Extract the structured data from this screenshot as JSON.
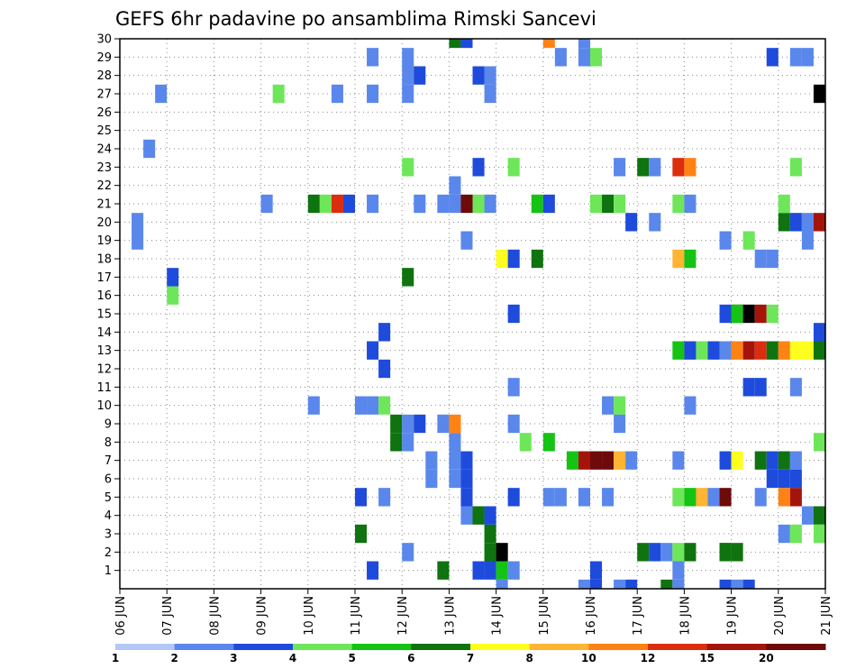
{
  "chart_data": {
    "type": "heatmap",
    "title": "GEFS 6hr padavine po ansamblima Rimski Sancevi",
    "xlabel": "",
    "ylabel": "",
    "x_ticks": [
      "06 JUN",
      "07 JUN",
      "08 JUN",
      "09 JUN",
      "10 JUN",
      "11 JUN",
      "12 JUN",
      "13 JUN",
      "14 JUN",
      "15 JUN",
      "16 JUN",
      "17 JUN",
      "18 JUN",
      "19 JUN",
      "20 JUN",
      "21 JUN"
    ],
    "y_ticks": [
      "1",
      "2",
      "3",
      "4",
      "5",
      "6",
      "7",
      "8",
      "9",
      "10",
      "11",
      "12",
      "13",
      "14",
      "15",
      "16",
      "17",
      "18",
      "19",
      "20",
      "21",
      "22",
      "23",
      "24",
      "25",
      "26",
      "27",
      "28",
      "29",
      "30"
    ],
    "xlim": [
      0,
      15
    ],
    "ylim": [
      0,
      30
    ],
    "time_step_days": 0.25,
    "grid": true,
    "grid_style": "dotted",
    "legend": {
      "placement": "bottom",
      "thresholds": [
        1,
        2,
        3,
        4,
        5,
        6,
        7,
        8,
        10,
        12,
        15,
        20
      ],
      "colors": [
        "#b4c8f5",
        "#5a87eb",
        "#1e4bdc",
        "#6ee65a",
        "#14c314",
        "#0f730f",
        "#ffff1e",
        "#ffb432",
        "#ff8214",
        "#dc2d0f",
        "#a5140a",
        "#6e0a0a"
      ]
    },
    "cells": [
      [
        0.25,
        19,
        1
      ],
      [
        0.25,
        20,
        1
      ],
      [
        0.5,
        24,
        1
      ],
      [
        0.75,
        27,
        1
      ],
      [
        1.0,
        17,
        2
      ],
      [
        1.0,
        16,
        3
      ],
      [
        2.5,
        31,
        2
      ],
      [
        3.0,
        21,
        1
      ],
      [
        3.25,
        27,
        3
      ],
      [
        4.0,
        21,
        5
      ],
      [
        4.0,
        10,
        1
      ],
      [
        4.25,
        21,
        3
      ],
      [
        4.5,
        21,
        9
      ],
      [
        4.5,
        27,
        1
      ],
      [
        4.75,
        21,
        2
      ],
      [
        5.0,
        3,
        5
      ],
      [
        5.0,
        5,
        2
      ],
      [
        5.0,
        10,
        1
      ],
      [
        5.25,
        1,
        2
      ],
      [
        5.25,
        10,
        1
      ],
      [
        5.25,
        13,
        2
      ],
      [
        5.25,
        29,
        1
      ],
      [
        5.25,
        21,
        1
      ],
      [
        5.25,
        27,
        1
      ],
      [
        5.5,
        5,
        1
      ],
      [
        5.5,
        10,
        3
      ],
      [
        5.5,
        12,
        2
      ],
      [
        5.5,
        14,
        2
      ],
      [
        5.75,
        9,
        5
      ],
      [
        5.75,
        8,
        5
      ],
      [
        6.0,
        9,
        1
      ],
      [
        6.0,
        2,
        1
      ],
      [
        6.0,
        8,
        1
      ],
      [
        6.0,
        17,
        5
      ],
      [
        6.0,
        23,
        3
      ],
      [
        6.0,
        27,
        1
      ],
      [
        6.0,
        28,
        1
      ],
      [
        6.0,
        29,
        1
      ],
      [
        6.25,
        9,
        2
      ],
      [
        6.25,
        21,
        1
      ],
      [
        6.25,
        28,
        2
      ],
      [
        6.5,
        6,
        1
      ],
      [
        6.5,
        7,
        1
      ],
      [
        6.75,
        9,
        1
      ],
      [
        6.75,
        21,
        1
      ],
      [
        6.75,
        1,
        5
      ],
      [
        6.75,
        31,
        1
      ],
      [
        7.0,
        22,
        1
      ],
      [
        7.0,
        8,
        1
      ],
      [
        7.0,
        7,
        1
      ],
      [
        7.0,
        6,
        1
      ],
      [
        7.0,
        30,
        5
      ],
      [
        7.0,
        9,
        8
      ],
      [
        7.0,
        21,
        1
      ],
      [
        7.0,
        31,
        1
      ],
      [
        7.25,
        21,
        11
      ],
      [
        7.25,
        19,
        1
      ],
      [
        7.25,
        7,
        2
      ],
      [
        7.25,
        6,
        2
      ],
      [
        7.25,
        5,
        2
      ],
      [
        7.25,
        4,
        1
      ],
      [
        7.25,
        30,
        2
      ],
      [
        7.5,
        21,
        3
      ],
      [
        7.5,
        1,
        2
      ],
      [
        7.5,
        4,
        5
      ],
      [
        7.5,
        28,
        2
      ],
      [
        7.5,
        23,
        2
      ],
      [
        7.5,
        31,
        2
      ],
      [
        7.75,
        31,
        3
      ],
      [
        7.75,
        3,
        5
      ],
      [
        7.75,
        2,
        5
      ],
      [
        7.75,
        1,
        2
      ],
      [
        7.75,
        4,
        2
      ],
      [
        7.75,
        21,
        1
      ],
      [
        7.75,
        27,
        1
      ],
      [
        7.75,
        28,
        1
      ],
      [
        8.0,
        18,
        6
      ],
      [
        8.0,
        2,
        12
      ],
      [
        8.0,
        1,
        4
      ],
      [
        8.0,
        0,
        1
      ],
      [
        8.25,
        18,
        2
      ],
      [
        8.25,
        1,
        1
      ],
      [
        8.25,
        9,
        1
      ],
      [
        8.25,
        11,
        1
      ],
      [
        8.25,
        5,
        2
      ],
      [
        8.25,
        15,
        2
      ],
      [
        8.25,
        23,
        3
      ],
      [
        8.5,
        8,
        3
      ],
      [
        8.75,
        21,
        4
      ],
      [
        8.75,
        18,
        5
      ],
      [
        9.0,
        21,
        2
      ],
      [
        9.0,
        5,
        1
      ],
      [
        9.0,
        8,
        4
      ],
      [
        9.0,
        30,
        8
      ],
      [
        9.0,
        31,
        1
      ],
      [
        9.25,
        5,
        1
      ],
      [
        9.25,
        29,
        1
      ],
      [
        9.5,
        7,
        4
      ],
      [
        9.75,
        0,
        1
      ],
      [
        9.75,
        7,
        10
      ],
      [
        9.75,
        5,
        1
      ],
      [
        9.75,
        29,
        1
      ],
      [
        9.75,
        30,
        1
      ],
      [
        10.0,
        7,
        11
      ],
      [
        10.0,
        1,
        2
      ],
      [
        10.0,
        0,
        2
      ],
      [
        10.0,
        21,
        3
      ],
      [
        10.0,
        29,
        3
      ],
      [
        10.0,
        31,
        5
      ],
      [
        10.25,
        7,
        11
      ],
      [
        10.25,
        21,
        5
      ],
      [
        10.25,
        10,
        1
      ],
      [
        10.25,
        5,
        1
      ],
      [
        10.5,
        7,
        7
      ],
      [
        10.5,
        21,
        3
      ],
      [
        10.5,
        10,
        3
      ],
      [
        10.5,
        9,
        1
      ],
      [
        10.5,
        23,
        1
      ],
      [
        10.5,
        0,
        1
      ],
      [
        10.5,
        31,
        4
      ],
      [
        10.75,
        7,
        1
      ],
      [
        10.75,
        20,
        2
      ],
      [
        10.75,
        31,
        2
      ],
      [
        10.75,
        0,
        2
      ],
      [
        11.0,
        2,
        5
      ],
      [
        11.0,
        23,
        5
      ],
      [
        11.25,
        20,
        1
      ],
      [
        11.25,
        2,
        2
      ],
      [
        11.25,
        23,
        1
      ],
      [
        11.5,
        2,
        1
      ],
      [
        11.5,
        0,
        5
      ],
      [
        11.75,
        7,
        1
      ],
      [
        11.75,
        13,
        4
      ],
      [
        11.75,
        18,
        7
      ],
      [
        11.75,
        23,
        9
      ],
      [
        11.75,
        5,
        3
      ],
      [
        11.75,
        1,
        1
      ],
      [
        11.75,
        2,
        3
      ],
      [
        11.75,
        21,
        3
      ],
      [
        11.75,
        0,
        1
      ],
      [
        12.0,
        5,
        4
      ],
      [
        12.0,
        13,
        2
      ],
      [
        12.0,
        23,
        8
      ],
      [
        12.0,
        18,
        4
      ],
      [
        12.0,
        2,
        5
      ],
      [
        12.0,
        10,
        1
      ],
      [
        12.0,
        21,
        1
      ],
      [
        12.25,
        13,
        3
      ],
      [
        12.25,
        5,
        7
      ],
      [
        12.5,
        13,
        2
      ],
      [
        12.5,
        5,
        1
      ],
      [
        12.5,
        31,
        2
      ],
      [
        12.75,
        15,
        2
      ],
      [
        12.75,
        13,
        1
      ],
      [
        12.75,
        2,
        1
      ],
      [
        12.75,
        19,
        1
      ],
      [
        12.75,
        2,
        5
      ],
      [
        12.75,
        5,
        11
      ],
      [
        12.75,
        7,
        2
      ],
      [
        12.75,
        0,
        2
      ],
      [
        13.0,
        15,
        11
      ],
      [
        13.0,
        13,
        8
      ],
      [
        13.0,
        7,
        6
      ],
      [
        13.0,
        2,
        5
      ],
      [
        13.0,
        15,
        4
      ],
      [
        13.0,
        0,
        1
      ],
      [
        13.25,
        15,
        12
      ],
      [
        13.25,
        13,
        10
      ],
      [
        13.25,
        19,
        3
      ],
      [
        13.25,
        0,
        2
      ],
      [
        13.25,
        11,
        2
      ],
      [
        13.5,
        15,
        10
      ],
      [
        13.5,
        13,
        9
      ],
      [
        13.5,
        11,
        2
      ],
      [
        13.5,
        5,
        1
      ],
      [
        13.5,
        7,
        5
      ],
      [
        13.5,
        18,
        1
      ],
      [
        13.75,
        15,
        3
      ],
      [
        13.75,
        13,
        5
      ],
      [
        13.75,
        18,
        1
      ],
      [
        13.75,
        7,
        2
      ],
      [
        13.75,
        29,
        2
      ],
      [
        13.75,
        6,
        2
      ],
      [
        14.0,
        13,
        8
      ],
      [
        14.0,
        7,
        5
      ],
      [
        14.0,
        6,
        2
      ],
      [
        14.0,
        5,
        8
      ],
      [
        14.0,
        20,
        5
      ],
      [
        14.0,
        3,
        1
      ],
      [
        14.0,
        21,
        3
      ],
      [
        14.25,
        13,
        6
      ],
      [
        14.25,
        7,
        1
      ],
      [
        14.25,
        5,
        10
      ],
      [
        14.25,
        6,
        2
      ],
      [
        14.25,
        3,
        3
      ],
      [
        14.25,
        20,
        2
      ],
      [
        14.25,
        11,
        1
      ],
      [
        14.25,
        29,
        1
      ],
      [
        14.25,
        23,
        3
      ],
      [
        14.5,
        13,
        6
      ],
      [
        14.5,
        4,
        1
      ],
      [
        14.5,
        20,
        1
      ],
      [
        14.5,
        29,
        1
      ],
      [
        14.5,
        19,
        1
      ],
      [
        14.75,
        27,
        12
      ],
      [
        14.75,
        20,
        10
      ],
      [
        14.75,
        14,
        2
      ],
      [
        14.75,
        13,
        5
      ],
      [
        14.75,
        8,
        3
      ],
      [
        14.75,
        4,
        5
      ],
      [
        14.75,
        3,
        3
      ]
    ]
  }
}
